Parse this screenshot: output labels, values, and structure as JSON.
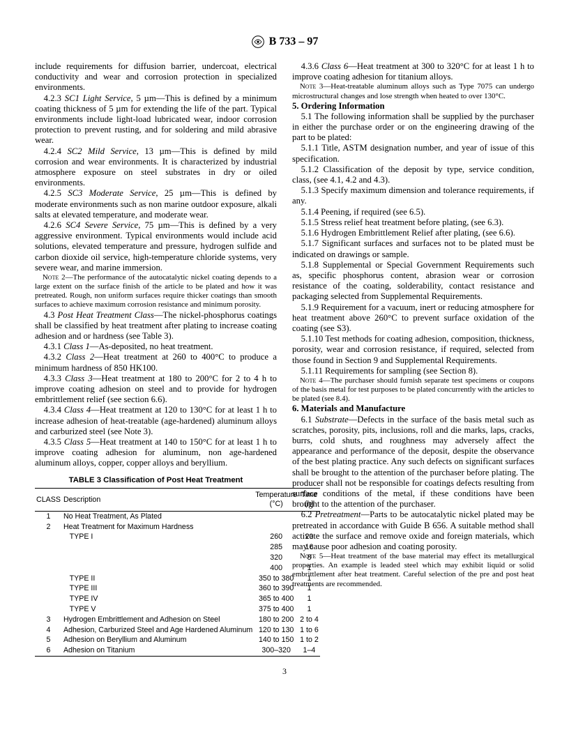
{
  "header": {
    "designation": "B 733 – 97"
  },
  "pagenum": "3",
  "left": {
    "p0": "include requirements for diffusion barrier, undercoat, electrical conductivity and wear and corrosion protection in specialized environments.",
    "p1a": "4.2.3 ",
    "p1b": "SC1 Light Service",
    "p1c": ", 5 µm—This is defined by a minimum coating thickness of 5 µm for extending the life of the part. Typical environments include light-load lubricated wear, indoor corrosion protection to prevent rusting, and for soldering and mild abrasive wear.",
    "p2a": "4.2.4 ",
    "p2b": "SC2 Mild Service",
    "p2c": ", 13 µm—This is defined by mild corrosion and wear environments. It is characterized by industrial atmosphere exposure on steel substrates in dry or oiled environments.",
    "p3a": "4.2.5 ",
    "p3b": "SC3 Moderate Service",
    "p3c": ", 25 µm—This is defined by moderate environments such as non marine outdoor exposure, alkali salts at elevated temperature, and moderate wear.",
    "p4a": "4.2.6 ",
    "p4b": "SC4 Severe Service",
    "p4c": ", 75 µm—This is defined by a very aggressive environment. Typical environments would include acid solutions, elevated temperature and pressure, hydrogen sulfide and carbon dioxide oil service, high-temperature chloride systems, very severe wear, and marine immersion.",
    "note2a": "Note 2—",
    "note2b": "The performance of the autocatalytic nickel coating depends to a large extent on the surface finish of the article to be plated and how it was pretreated. Rough, non uniform surfaces require thicker coatings than smooth surfaces to achieve maximum corrosion resistance and minimum porosity.",
    "p5a": "4.3 ",
    "p5b": "Post Heat Treatment Class",
    "p5c": "—The nickel-phosphorus coatings shall be classified by heat treatment after plating to increase coating adhesion and or hardness (see Table 3).",
    "p6a": "4.3.1 ",
    "p6b": "Class 1",
    "p6c": "—As-deposited, no heat treatment.",
    "p7a": "4.3.2 ",
    "p7b": "Class 2",
    "p7c": "—Heat treatment at 260 to 400°C to produce a minimum hardness of 850 HK100.",
    "p8a": "4.3.3 ",
    "p8b": "Class 3",
    "p8c": "—Heat treatment at 180 to 200°C for 2 to 4 h to improve coating adhesion on steel and to provide for hydrogen embrittlement relief (see section 6.6).",
    "p9a": "4.3.4 ",
    "p9b": "Class 4",
    "p9c": "—Heat treatment at 120 to 130°C for at least 1 h to increase adhesion of heat-treatable (age-hardened) aluminum alloys and carburized steel (see Note 3).",
    "p10a": "4.3.5 ",
    "p10b": "Class 5",
    "p10c": "—Heat treatment at 140 to 150°C for at least 1 h to improve coating adhesion for aluminum, non age-hardened aluminum alloys, copper, copper alloys and beryllium."
  },
  "table": {
    "title": "TABLE 3  Classification of Post Heat Treatment",
    "head1": "CLASS",
    "head2": "Description",
    "head3": "Temperature (°C)",
    "head4": "Time (h)",
    "rows": [
      {
        "c": "1",
        "d": "No Heat Treatment, As Plated",
        "t": "",
        "h": ""
      },
      {
        "c": "2",
        "d": "Heat Treatment for Maximum Hardness",
        "t": "",
        "h": ""
      },
      {
        "c": "",
        "d": "   TYPE I",
        "t": "260",
        "h": "20"
      },
      {
        "c": "",
        "d": "",
        "t": "285",
        "h": "16"
      },
      {
        "c": "",
        "d": "",
        "t": "320",
        "h": "8"
      },
      {
        "c": "",
        "d": "",
        "t": "400",
        "h": "1"
      },
      {
        "c": "",
        "d": "   TYPE II",
        "t": "350 to 380",
        "h": "1"
      },
      {
        "c": "",
        "d": "   TYPE III",
        "t": "360 to 390",
        "h": "1"
      },
      {
        "c": "",
        "d": "   TYPE IV",
        "t": "365 to 400",
        "h": "1"
      },
      {
        "c": "",
        "d": "   TYPE V",
        "t": "375 to 400",
        "h": "1"
      },
      {
        "c": "3",
        "d": "Hydrogen Embrittlement and Adhesion on Steel",
        "t": "180 to 200",
        "h": "2 to 4"
      },
      {
        "c": "4",
        "d": "Adhesion, Carburized Steel and Age Hardened Aluminum",
        "t": "120 to 130",
        "h": "1 to 6"
      },
      {
        "c": "5",
        "d": "Adhesion on Beryllium and Aluminum",
        "t": "140 to 150",
        "h": "1 to 2"
      },
      {
        "c": "6",
        "d": "Adhesion on Titanium",
        "t": "300–320",
        "h": "1–4"
      }
    ]
  },
  "right": {
    "p0a": "4.3.6 ",
    "p0b": "Class 6",
    "p0c": "—Heat treatment at 300 to 320°C for at least 1 h to improve coating adhesion for titanium alloys.",
    "note3a": "Note 3—",
    "note3b": "Heat-treatable aluminum alloys such as Type 7075 can undergo microstructural changes and lose strength when heated to over 130°C.",
    "s5": "5.  Ordering Information",
    "p1": "5.1 The following information shall be supplied by the purchaser in either the purchase order or on the engineering drawing of the part to be plated:",
    "p2": "5.1.1 Title, ASTM designation number, and year of issue of this specification.",
    "p3": "5.1.2 Classification of the deposit by type, service condition, class, (see 4.1, 4.2 and 4.3).",
    "p4": "5.1.3 Specify maximum dimension and tolerance requirements, if any.",
    "p5": "5.1.4 Peening, if required (see 6.5).",
    "p6": "5.1.5 Stress relief heat treatment before plating, (see 6.3).",
    "p7": "5.1.6 Hydrogen Embrittlement Relief after plating, (see 6.6).",
    "p8": "5.1.7 Significant surfaces and surfaces not to be plated must be indicated on drawings or sample.",
    "p9": "5.1.8 Supplemental or Special Government Requirements such as, specific phosphorus content, abrasion wear or corrosion resistance of the coating, solderability, contact resistance and packaging selected from Supplemental Requirements.",
    "p10": "5.1.9 Requirement for a vacuum, inert or reducing atmosphere for heat treatment above 260°C to prevent surface oxidation of the coating (see S3).",
    "p11": "5.1.10 Test methods for coating adhesion, composition, thickness, porosity, wear and corrosion resistance, if required, selected from those found in Section 9 and Supplemental Requirements.",
    "p12": "5.1.11 Requirements for sampling (see Section 8).",
    "note4a": "Note 4—",
    "note4b": "The purchaser should furnish separate test specimens or coupons of the basis metal for test purposes to be plated concurrently with the articles to be plated (see 8.4).",
    "s6": "6.  Materials and Manufacture",
    "p13a": "6.1 ",
    "p13b": "Substrate",
    "p13c": "—Defects in the surface of the basis metal such as scratches, porosity, pits, inclusions, roll and die marks, laps, cracks, burrs, cold shuts, and roughness may adversely affect the appearance and performance of the deposit, despite the observance of the best plating practice. Any such defects on significant surfaces shall be brought to the attention of the purchaser before plating. The producer shall not be responsible for coatings defects resulting from surface conditions of the metal, if these conditions have been brought to the attention of the purchaser.",
    "p14a": "6.2 ",
    "p14b": "Pretreatment",
    "p14c": "—Parts to be autocatalytic nickel plated may be pretreated in accordance with Guide B 656. A suitable method shall activate the surface and remove oxide and foreign materials, which may cause poor adhesion and coating porosity.",
    "note5a": "Note 5—",
    "note5b": "Heat treatment of the base material may effect its metallurgical properties. An example is leaded steel which may exhibit liquid or solid embrittlement after heat treatment. Careful selection of the pre and post heat treatments are recommended."
  }
}
